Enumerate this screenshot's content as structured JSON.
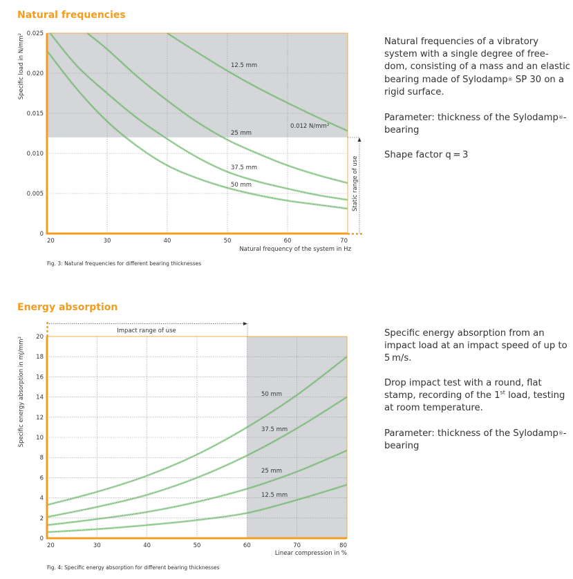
{
  "section1": {
    "heading": "Natural frequencies",
    "description": [
      "Natural frequencies of a vibratory system with a single degree of free-dom, consisting of a mass and an elastic bearing made of Sylodamp",
      " SP 30 on a rigid surface.",
      "Parameter: thickness of the Sylodamp",
      "-bearing",
      "Shape factor q = 3"
    ],
    "registered_mark": "®"
  },
  "section2": {
    "heading": "Energy absorption",
    "description": [
      "Specific energy absorption from an impact load at an impact speed of up to 5 m/s.",
      "Drop impact test with a round, flat stamp, recording of the 1",
      "st",
      " load, testing at room temperature.",
      "Parameter: thickness of the Sylodamp",
      "-bearing"
    ],
    "registered_mark": "®"
  },
  "colors": {
    "accent": "#f39c1e",
    "curve": "#7cc47a",
    "curve_dark": "#4f9a4c",
    "shade": "#d4d6d9",
    "grid": "#9a9a9a"
  },
  "chart_data": [
    {
      "type": "line",
      "title": "Natural frequencies",
      "caption": "Fig. 3: Natural frequencies for different bearing thicknesses",
      "xlabel": "Natural frequency of the system in Hz",
      "ylabel": "Specific load in N/mm²",
      "xlim": [
        20,
        70
      ],
      "ylim": [
        0,
        0.025
      ],
      "xticks": [
        20,
        30,
        40,
        50,
        60,
        70
      ],
      "yticks": [
        "0",
        "0.005",
        "0.010",
        "0.015",
        "0.020",
        "0.025"
      ],
      "ytick_values": [
        0,
        0.005,
        0.01,
        0.015,
        0.02,
        0.025
      ],
      "grid": true,
      "shaded_region": {
        "y_from": 0.012,
        "y_to": 0.025,
        "label": "0.012 N/mm²"
      },
      "range_annotation": "Static range of use",
      "series": [
        {
          "name": "12.5 mm",
          "x": [
            40,
            45,
            50,
            55,
            60,
            65,
            70
          ],
          "y": [
            0.025,
            0.0226,
            0.0203,
            0.0182,
            0.0163,
            0.0145,
            0.0128
          ]
        },
        {
          "name": "25 mm",
          "x": [
            26.7,
            30,
            35,
            40,
            45,
            50,
            55,
            60,
            65,
            70
          ],
          "y": [
            0.025,
            0.023,
            0.0196,
            0.0166,
            0.0139,
            0.0117,
            0.01,
            0.0085,
            0.0073,
            0.0063
          ]
        },
        {
          "name": "37.5 mm",
          "x": [
            20.5,
            25,
            30,
            35,
            40,
            45,
            50,
            55,
            60,
            65,
            70
          ],
          "y": [
            0.025,
            0.0209,
            0.0175,
            0.0144,
            0.0118,
            0.0095,
            0.0077,
            0.0065,
            0.0056,
            0.0048,
            0.0042
          ]
        },
        {
          "name": "50 mm",
          "x": [
            20,
            25,
            30,
            35,
            40,
            45,
            50,
            55,
            60,
            65,
            70
          ],
          "y": [
            0.0228,
            0.018,
            0.014,
            0.0109,
            0.0085,
            0.0069,
            0.0057,
            0.0048,
            0.0041,
            0.0036,
            0.0031
          ]
        }
      ]
    },
    {
      "type": "line",
      "title": "Energy absorption",
      "caption": "Fig. 4: Specific energy absorption for different bearing thicknesses",
      "xlabel": "Linear compression in %",
      "ylabel": "Specific energy absorption in mJ/mm²",
      "xlim": [
        20,
        80
      ],
      "ylim": [
        0,
        20
      ],
      "xticks": [
        20,
        30,
        40,
        50,
        60,
        70,
        80
      ],
      "yticks": [
        "0",
        "2",
        "4",
        "6",
        "8",
        "10",
        "12",
        "14",
        "16",
        "18",
        "20"
      ],
      "ytick_values": [
        0,
        2,
        4,
        6,
        8,
        10,
        12,
        14,
        16,
        18,
        20
      ],
      "grid": true,
      "shaded_region": {
        "x_from": 60,
        "x_to": 80
      },
      "range_annotation": "Impact range of use",
      "series": [
        {
          "name": "50 mm",
          "x": [
            20,
            30,
            40,
            50,
            60,
            70,
            80
          ],
          "y": [
            3.3,
            4.6,
            6.2,
            8.3,
            11,
            14.2,
            18
          ]
        },
        {
          "name": "37.5 mm",
          "x": [
            20,
            30,
            40,
            50,
            60,
            70,
            80
          ],
          "y": [
            2.1,
            3.1,
            4.3,
            6,
            8.2,
            10.9,
            14
          ]
        },
        {
          "name": "25 mm",
          "x": [
            20,
            30,
            40,
            50,
            60,
            70,
            80
          ],
          "y": [
            1.3,
            1.9,
            2.6,
            3.6,
            4.9,
            6.6,
            8.7
          ]
        },
        {
          "name": "12.5 mm",
          "x": [
            20,
            30,
            40,
            50,
            60,
            70,
            80
          ],
          "y": [
            0.6,
            0.9,
            1.3,
            1.8,
            2.5,
            3.8,
            5.3
          ]
        }
      ]
    }
  ]
}
